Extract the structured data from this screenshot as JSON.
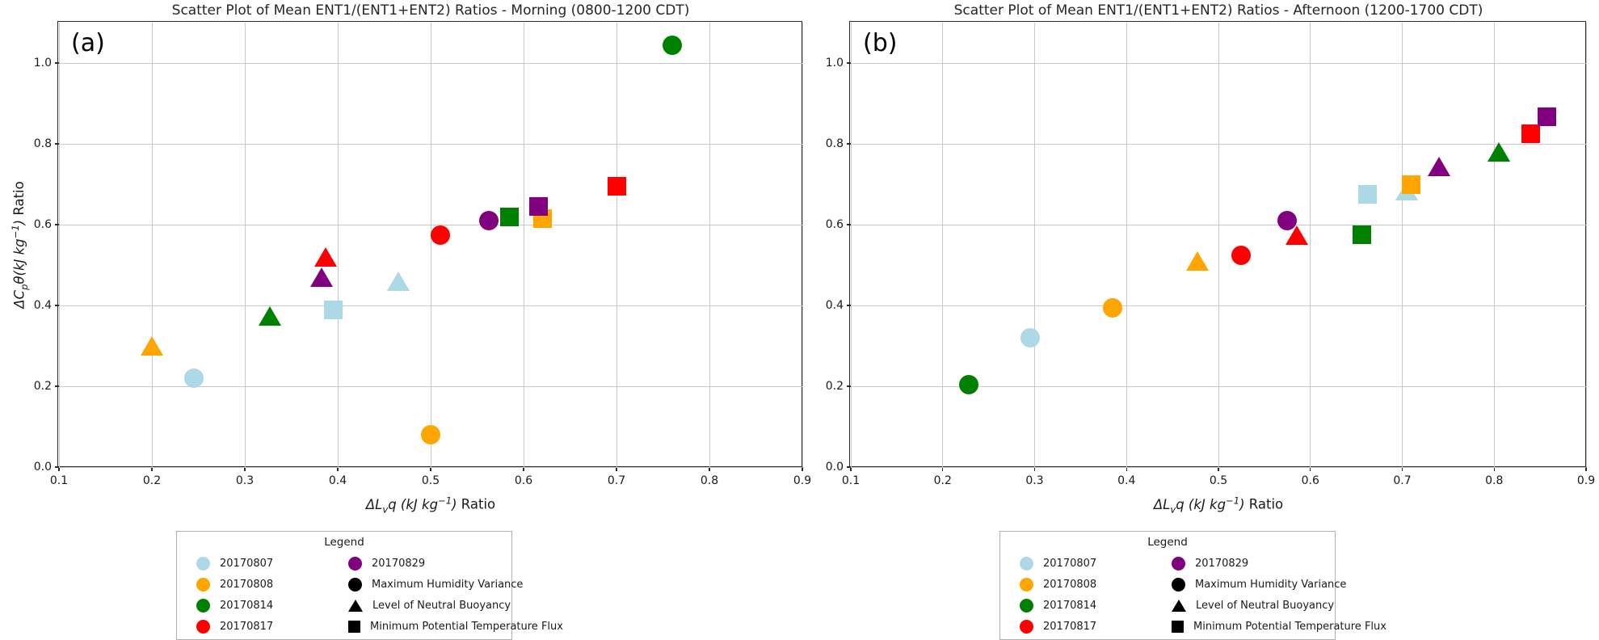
{
  "figure": {
    "background": "#ffffff"
  },
  "chart_data": [
    {
      "type": "scatter",
      "panel_label": "(a)",
      "title": "Scatter Plot of Mean ENT1/(ENT1+ENT2) Ratios - Morning (0800-1200 CDT)",
      "xlabel": {
        "pre": "ΔL",
        "sub": "v",
        "mid": "q (kJ kg",
        "sup": "−1",
        "end": ")",
        "suffix": " Ratio"
      },
      "ylabel": {
        "pre": "ΔC",
        "sub": "p",
        "mid": "θ(kJ kg",
        "sup": "−1",
        "end": ")",
        "suffix": " Ratio"
      },
      "xlim": [
        0.1,
        0.9
      ],
      "ylim": [
        0.0,
        1.1
      ],
      "xtick_labels": [
        "0.1",
        "0.2",
        "0.3",
        "0.4",
        "0.5",
        "0.6",
        "0.7",
        "0.8",
        "0.9"
      ],
      "ytick_labels": [
        "0.0",
        "0.2",
        "0.4",
        "0.6",
        "0.8",
        "1.0"
      ],
      "grid": true,
      "series": [
        {
          "name": "20170807",
          "color": "#add8e6",
          "points": [
            {
              "marker": "circle",
              "x": 0.245,
              "y": 0.22
            },
            {
              "marker": "triangle",
              "x": 0.465,
              "y": 0.46
            },
            {
              "marker": "square",
              "x": 0.395,
              "y": 0.39
            }
          ]
        },
        {
          "name": "20170808",
          "color": "#ffa500",
          "points": [
            {
              "marker": "circle",
              "x": 0.5,
              "y": 0.08
            },
            {
              "marker": "triangle",
              "x": 0.2,
              "y": 0.3
            },
            {
              "marker": "square",
              "x": 0.62,
              "y": 0.615
            }
          ]
        },
        {
          "name": "20170814",
          "color": "#008000",
          "points": [
            {
              "marker": "circle",
              "x": 0.76,
              "y": 1.045
            },
            {
              "marker": "triangle",
              "x": 0.327,
              "y": 0.375
            },
            {
              "marker": "square",
              "x": 0.585,
              "y": 0.62
            }
          ]
        },
        {
          "name": "20170817",
          "color": "#ff0000",
          "points": [
            {
              "marker": "circle",
              "x": 0.51,
              "y": 0.575
            },
            {
              "marker": "triangle",
              "x": 0.387,
              "y": 0.52
            },
            {
              "marker": "square",
              "x": 0.7,
              "y": 0.695
            }
          ]
        },
        {
          "name": "20170829",
          "color": "#800080",
          "points": [
            {
              "marker": "circle",
              "x": 0.563,
              "y": 0.61
            },
            {
              "marker": "triangle",
              "x": 0.383,
              "y": 0.47
            },
            {
              "marker": "square",
              "x": 0.616,
              "y": 0.645
            }
          ]
        }
      ]
    },
    {
      "type": "scatter",
      "panel_label": "(b)",
      "title": "Scatter Plot of Mean ENT1/(ENT1+ENT2) Ratios - Afternoon (1200-1700 CDT)",
      "xlabel": {
        "pre": "ΔL",
        "sub": "v",
        "mid": "q (kJ kg",
        "sup": "−1",
        "end": ")",
        "suffix": " Ratio"
      },
      "xlim": [
        0.1,
        0.9
      ],
      "ylim": [
        0.0,
        1.1
      ],
      "xtick_labels": [
        "0.1",
        "0.2",
        "0.3",
        "0.4",
        "0.5",
        "0.6",
        "0.7",
        "0.8",
        "0.9"
      ],
      "ytick_labels": [
        "0.0",
        "0.2",
        "0.4",
        "0.6",
        "0.8",
        "1.0"
      ],
      "grid": true,
      "series": [
        {
          "name": "20170807",
          "color": "#add8e6",
          "points": [
            {
              "marker": "circle",
              "x": 0.295,
              "y": 0.32
            },
            {
              "marker": "triangle",
              "x": 0.705,
              "y": 0.685
            },
            {
              "marker": "square",
              "x": 0.662,
              "y": 0.675
            }
          ]
        },
        {
          "name": "20170808",
          "color": "#ffa500",
          "points": [
            {
              "marker": "circle",
              "x": 0.385,
              "y": 0.395
            },
            {
              "marker": "triangle",
              "x": 0.477,
              "y": 0.51
            },
            {
              "marker": "square",
              "x": 0.71,
              "y": 0.7
            }
          ]
        },
        {
          "name": "20170814",
          "color": "#008000",
          "points": [
            {
              "marker": "circle",
              "x": 0.228,
              "y": 0.205
            },
            {
              "marker": "triangle",
              "x": 0.805,
              "y": 0.78
            },
            {
              "marker": "square",
              "x": 0.656,
              "y": 0.575
            }
          ]
        },
        {
          "name": "20170817",
          "color": "#ff0000",
          "points": [
            {
              "marker": "circle",
              "x": 0.525,
              "y": 0.525
            },
            {
              "marker": "triangle",
              "x": 0.585,
              "y": 0.575
            },
            {
              "marker": "square",
              "x": 0.84,
              "y": 0.825
            }
          ]
        },
        {
          "name": "20170829",
          "color": "#800080",
          "points": [
            {
              "marker": "circle",
              "x": 0.575,
              "y": 0.61
            },
            {
              "marker": "triangle",
              "x": 0.74,
              "y": 0.745
            },
            {
              "marker": "square",
              "x": 0.857,
              "y": 0.868
            }
          ]
        }
      ]
    }
  ],
  "legend": {
    "title": "Legend",
    "columns": [
      [
        {
          "label": "20170807",
          "marker": "circle",
          "color": "#add8e6"
        },
        {
          "label": "20170808",
          "marker": "circle",
          "color": "#ffa500"
        },
        {
          "label": "20170814",
          "marker": "circle",
          "color": "#008000"
        },
        {
          "label": "20170817",
          "marker": "circle",
          "color": "#ff0000"
        }
      ],
      [
        {
          "label": "20170829",
          "marker": "circle",
          "color": "#800080"
        },
        {
          "label": "Maximum Humidity Variance",
          "marker": "circle",
          "color": "#000000"
        },
        {
          "label": "Level of Neutral Buoyancy",
          "marker": "triangle",
          "color": "#000000"
        },
        {
          "label": "Minimum Potential Temperature Flux",
          "marker": "square",
          "color": "#000000"
        }
      ]
    ]
  }
}
